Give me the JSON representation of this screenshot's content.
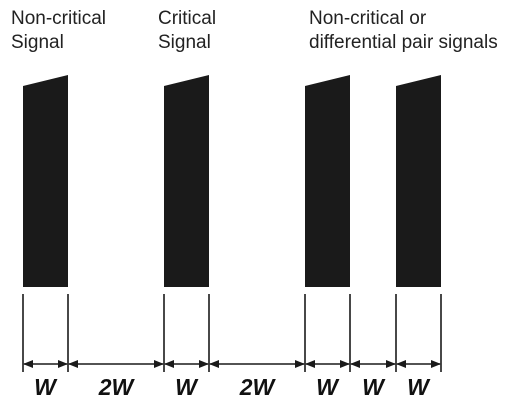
{
  "labels": {
    "non_critical_signal": [
      "Non-critical",
      "Signal"
    ],
    "critical_signal": [
      "Critical",
      "Signal"
    ],
    "non_critical_or_diff_pair": [
      "Non-critical or",
      "differential pair signals"
    ]
  },
  "dimensions": {
    "w1": "W",
    "gap1": "2W",
    "w2": "W",
    "gap2": "2W",
    "w3": "W",
    "gap3": "W",
    "w4": "W"
  },
  "colors": {
    "trace": "#1a1a1a",
    "text": "#222222"
  }
}
